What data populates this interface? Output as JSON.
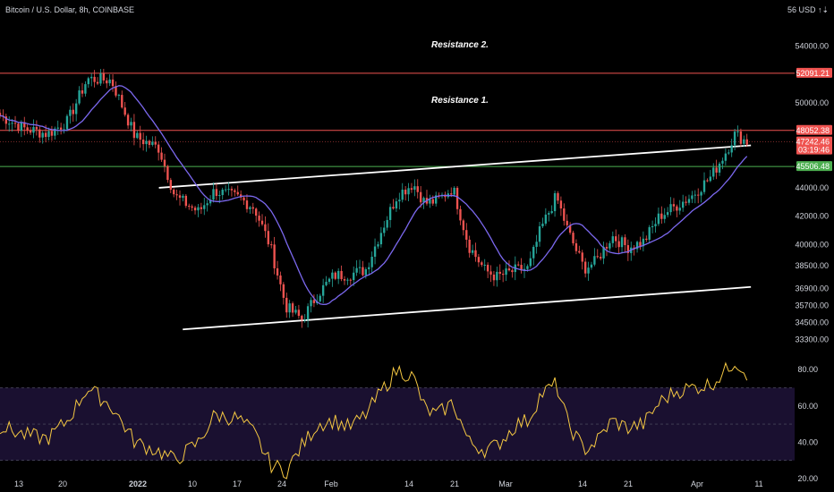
{
  "header": {
    "symbol_title": "Bitcoin / U.S. Dollar, 8h, COINBASE",
    "currency_label": "56 USD ↑⇣"
  },
  "colors": {
    "background": "#000000",
    "up": "#26a69a",
    "down": "#ef5350",
    "ma_line": "#7b68ee",
    "channel": "#ffffff",
    "resistance": "#ef5350",
    "support": "#4caf50",
    "rsi_line": "#f5c842",
    "rsi_band": "#1a1030"
  },
  "chart_data": [
    {
      "type": "candlestick",
      "title": "Bitcoin / U.S. Dollar, 8h, COINBASE",
      "x_tick_labels": [
        "13",
        "20",
        "2022",
        "10",
        "17",
        "24",
        "Feb",
        "14",
        "21",
        "Mar",
        "14",
        "21",
        "Apr",
        "11"
      ],
      "y_tick_labels": [
        "54000.00",
        "50000.00",
        "44000.00",
        "42000.00",
        "40000.00",
        "38500.00",
        "36900.00",
        "35700.00",
        "34500.00",
        "33300.00"
      ],
      "y_range": [
        32500,
        56000
      ],
      "annotations": [
        "Resistance 2.",
        "Resistance 1."
      ],
      "price_levels": [
        {
          "name": "resistance-2",
          "value": 52091.21,
          "label": "52091.21",
          "color": "#ef5350"
        },
        {
          "name": "resistance-1",
          "value": 48052.38,
          "label": "48052.38",
          "color": "#ef5350"
        },
        {
          "name": "last-price",
          "value": 47242.46,
          "label": "47242.46",
          "timer": "03:19:46",
          "color": "#ef5350"
        },
        {
          "name": "support",
          "value": 45506.48,
          "label": "45506.48",
          "color": "#4caf50"
        }
      ],
      "channel_lines": [
        {
          "name": "channel-upper",
          "from": {
            "t": 0.2,
            "price": 44000
          },
          "to": {
            "t": 0.945,
            "price": 47000
          }
        },
        {
          "name": "channel-lower",
          "from": {
            "t": 0.23,
            "price": 34000
          },
          "to": {
            "t": 0.945,
            "price": 37000
          }
        }
      ],
      "series": [
        {
          "name": "close",
          "anchors": [
            [
              0.0,
              49100
            ],
            [
              0.03,
              48200
            ],
            [
              0.06,
              47800
            ],
            [
              0.085,
              48700
            ],
            [
              0.11,
              51700
            ],
            [
              0.14,
              51600
            ],
            [
              0.17,
              47600
            ],
            [
              0.2,
              46800
            ],
            [
              0.22,
              43400
            ],
            [
              0.25,
              42300
            ],
            [
              0.27,
              43800
            ],
            [
              0.3,
              43300
            ],
            [
              0.32,
              42600
            ],
            [
              0.34,
              39900
            ],
            [
              0.36,
              35600
            ],
            [
              0.38,
              34700
            ],
            [
              0.4,
              36500
            ],
            [
              0.42,
              37800
            ],
            [
              0.44,
              37900
            ],
            [
              0.46,
              38200
            ],
            [
              0.48,
              41000
            ],
            [
              0.5,
              43500
            ],
            [
              0.52,
              44300
            ],
            [
              0.535,
              42900
            ],
            [
              0.55,
              43100
            ],
            [
              0.57,
              44000
            ],
            [
              0.59,
              39900
            ],
            [
              0.61,
              38200
            ],
            [
              0.625,
              37700
            ],
            [
              0.65,
              38200
            ],
            [
              0.665,
              38300
            ],
            [
              0.68,
              41000
            ],
            [
              0.7,
              43400
            ],
            [
              0.715,
              40900
            ],
            [
              0.735,
              38300
            ],
            [
              0.75,
              38800
            ],
            [
              0.77,
              40600
            ],
            [
              0.79,
              39800
            ],
            [
              0.81,
              40200
            ],
            [
              0.83,
              42000
            ],
            [
              0.85,
              42700
            ],
            [
              0.87,
              43400
            ],
            [
              0.895,
              44800
            ],
            [
              0.915,
              46700
            ],
            [
              0.925,
              47800
            ],
            [
              0.94,
              47250
            ]
          ]
        }
      ]
    },
    {
      "type": "line",
      "title": "RSI",
      "y_tick_labels": [
        "80.00",
        "60.00",
        "40.00",
        "20.00"
      ],
      "y_range": [
        20,
        85
      ],
      "band": [
        30,
        70
      ],
      "series": [
        {
          "name": "rsi",
          "anchors": [
            [
              0.0,
              49
            ],
            [
              0.03,
              44
            ],
            [
              0.06,
              42
            ],
            [
              0.085,
              52
            ],
            [
              0.11,
              70
            ],
            [
              0.14,
              60
            ],
            [
              0.17,
              40
            ],
            [
              0.2,
              35
            ],
            [
              0.22,
              30
            ],
            [
              0.25,
              40
            ],
            [
              0.27,
              55
            ],
            [
              0.3,
              53
            ],
            [
              0.32,
              45
            ],
            [
              0.34,
              28
            ],
            [
              0.36,
              24
            ],
            [
              0.38,
              38
            ],
            [
              0.4,
              50
            ],
            [
              0.42,
              52
            ],
            [
              0.44,
              48
            ],
            [
              0.46,
              55
            ],
            [
              0.48,
              68
            ],
            [
              0.5,
              80
            ],
            [
              0.52,
              76
            ],
            [
              0.535,
              58
            ],
            [
              0.55,
              55
            ],
            [
              0.57,
              62
            ],
            [
              0.59,
              40
            ],
            [
              0.61,
              36
            ],
            [
              0.625,
              38
            ],
            [
              0.65,
              50
            ],
            [
              0.665,
              52
            ],
            [
              0.68,
              66
            ],
            [
              0.7,
              72
            ],
            [
              0.715,
              50
            ],
            [
              0.735,
              36
            ],
            [
              0.75,
              40
            ],
            [
              0.77,
              52
            ],
            [
              0.79,
              48
            ],
            [
              0.81,
              50
            ],
            [
              0.83,
              62
            ],
            [
              0.85,
              68
            ],
            [
              0.87,
              70
            ],
            [
              0.895,
              72
            ],
            [
              0.915,
              80
            ],
            [
              0.925,
              85
            ],
            [
              0.94,
              78
            ]
          ]
        }
      ]
    }
  ]
}
